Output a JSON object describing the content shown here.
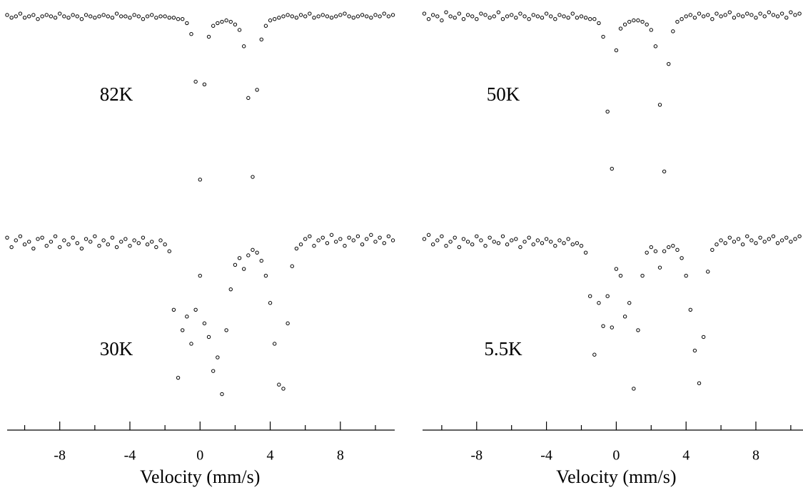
{
  "chart_data": [
    {
      "type": "scatter",
      "annotation": "82K",
      "xlim": [
        -11,
        11.1
      ],
      "ylim": [
        86,
        101.2
      ],
      "x": [
        -11,
        -10.75,
        -10.5,
        -10.25,
        -10,
        -9.75,
        -9.5,
        -9.25,
        -9,
        -8.75,
        -8.5,
        -8.25,
        -8,
        -7.75,
        -7.5,
        -7.25,
        -7,
        -6.75,
        -6.5,
        -6.25,
        -6,
        -5.75,
        -5.5,
        -5.25,
        -5,
        -4.75,
        -4.5,
        -4.25,
        -4,
        -3.75,
        -3.5,
        -3.25,
        -3,
        -2.75,
        -2.5,
        -2.25,
        -2,
        -1.75,
        -1.5,
        -1.25,
        -1,
        -0.75,
        -0.5,
        -0.25,
        0,
        0.25,
        0.5,
        0.75,
        1,
        1.25,
        1.5,
        1.75,
        2,
        2.25,
        2.5,
        2.75,
        3,
        3.25,
        3.5,
        3.75,
        4,
        4.25,
        4.5,
        4.75,
        5,
        5.25,
        5.5,
        5.75,
        6,
        6.25,
        6.5,
        6.75,
        7,
        7.25,
        7.5,
        7.75,
        8,
        8.25,
        8.5,
        8.75,
        9,
        9.25,
        9.5,
        9.75,
        10,
        10.25,
        10.5,
        10.75,
        11
      ],
      "values": [
        100.1,
        99.9,
        100,
        100.2,
        99.9,
        100,
        100.1,
        99.8,
        100,
        100.1,
        100,
        99.9,
        100.2,
        100,
        99.9,
        100.1,
        100,
        99.8,
        100.1,
        100,
        99.9,
        100,
        100.1,
        100,
        99.9,
        100.2,
        100,
        100,
        99.9,
        100.1,
        100,
        99.8,
        100,
        100.1,
        99.9,
        100,
        100,
        99.9,
        99.9,
        99.8,
        99.8,
        99.5,
        98.7,
        95.2,
        88,
        95,
        98.5,
        99.3,
        99.5,
        99.6,
        99.7,
        99.6,
        99.4,
        99,
        97.8,
        94,
        88.2,
        94.6,
        98.3,
        99.3,
        99.7,
        99.8,
        99.9,
        100,
        100.1,
        100,
        99.9,
        100.1,
        100,
        100.2,
        99.9,
        100,
        100.1,
        100,
        99.9,
        100,
        100.1,
        100.2,
        100,
        99.9,
        100,
        100.1,
        100,
        99.9,
        100.1,
        100,
        100.2,
        100,
        100.1
      ]
    },
    {
      "type": "scatter",
      "annotation": "50K",
      "xlim": [
        -11.1,
        10.7
      ],
      "ylim": [
        86,
        101.2
      ],
      "x": [
        -11,
        -10.75,
        -10.5,
        -10.25,
        -10,
        -9.75,
        -9.5,
        -9.25,
        -9,
        -8.75,
        -8.5,
        -8.25,
        -8,
        -7.75,
        -7.5,
        -7.25,
        -7,
        -6.75,
        -6.5,
        -6.25,
        -6,
        -5.75,
        -5.5,
        -5.25,
        -5,
        -4.75,
        -4.5,
        -4.25,
        -4,
        -3.75,
        -3.5,
        -3.25,
        -3,
        -2.75,
        -2.5,
        -2.25,
        -2,
        -1.75,
        -1.5,
        -1.25,
        -1,
        -0.75,
        -0.5,
        -0.25,
        0,
        0.25,
        0.5,
        0.75,
        1,
        1.25,
        1.5,
        1.75,
        2,
        2.25,
        2.5,
        2.75,
        3,
        3.25,
        3.5,
        3.75,
        4,
        4.25,
        4.5,
        4.75,
        5,
        5.25,
        5.5,
        5.75,
        6,
        6.25,
        6.5,
        6.75,
        7,
        7.25,
        7.5,
        7.75,
        8,
        8.25,
        8.5,
        8.75,
        9,
        9.25,
        9.5,
        9.75,
        10,
        10.25,
        10.5
      ],
      "values": [
        100.2,
        99.8,
        100.1,
        100,
        99.7,
        100.3,
        100,
        99.9,
        100.2,
        99.8,
        100.1,
        100,
        99.8,
        100.2,
        100.1,
        99.9,
        100,
        100.3,
        99.8,
        100,
        100.1,
        99.9,
        100.2,
        100,
        99.8,
        100.1,
        100,
        99.9,
        100.2,
        100,
        99.8,
        100.1,
        100,
        99.9,
        100.2,
        99.9,
        100,
        99.9,
        99.8,
        99.8,
        99.5,
        98.5,
        93,
        88.8,
        97.5,
        99.1,
        99.4,
        99.6,
        99.7,
        99.7,
        99.6,
        99.4,
        99,
        97.8,
        93.5,
        88.6,
        96.5,
        98.9,
        99.6,
        99.8,
        100,
        100.1,
        99.9,
        100.2,
        100,
        100.1,
        99.8,
        100.2,
        100,
        100.1,
        100.3,
        99.9,
        100.1,
        100,
        100.2,
        100.1,
        99.9,
        100.2,
        100,
        100.3,
        100.1,
        100,
        100.2,
        99.9,
        100.3,
        100.1,
        100.2
      ]
    },
    {
      "type": "scatter",
      "annotation": "30K",
      "xlabel": "Velocity (mm/s)",
      "xlim": [
        -11,
        11.1
      ],
      "ylim": [
        86,
        101.2
      ],
      "xticks": [
        -8,
        -4,
        0,
        4,
        8
      ],
      "xminor_ticks": [
        -10,
        -6,
        -2,
        2,
        6,
        10
      ],
      "x": [
        -11,
        -10.75,
        -10.5,
        -10.25,
        -10,
        -9.75,
        -9.5,
        -9.25,
        -9,
        -8.75,
        -8.5,
        -8.25,
        -8,
        -7.75,
        -7.5,
        -7.25,
        -7,
        -6.75,
        -6.5,
        -6.25,
        -6,
        -5.75,
        -5.5,
        -5.25,
        -5,
        -4.75,
        -4.5,
        -4.25,
        -4,
        -3.75,
        -3.5,
        -3.25,
        -3,
        -2.75,
        -2.5,
        -2.25,
        -2,
        -1.75,
        -1.5,
        -1.25,
        -1,
        -0.75,
        -0.5,
        -0.25,
        0,
        0.25,
        0.5,
        0.75,
        1,
        1.25,
        1.5,
        1.75,
        2,
        2.25,
        2.5,
        2.75,
        3,
        3.25,
        3.5,
        3.75,
        4,
        4.25,
        4.5,
        4.75,
        5,
        5.25,
        5.5,
        5.75,
        6,
        6.25,
        6.5,
        6.75,
        7,
        7.25,
        7.5,
        7.75,
        8,
        8.25,
        8.5,
        8.75,
        9,
        9.25,
        9.5,
        9.75,
        10,
        10.25,
        10.5,
        10.75,
        11
      ],
      "values": [
        100.3,
        99.6,
        100.1,
        100.4,
        99.8,
        100,
        99.5,
        100.2,
        100.3,
        99.7,
        100,
        100.4,
        99.6,
        100.1,
        99.8,
        100.3,
        99.9,
        99.5,
        100.2,
        100,
        100.4,
        99.7,
        100.1,
        99.8,
        100.3,
        99.6,
        100,
        100.2,
        99.7,
        100.1,
        99.9,
        100.3,
        99.8,
        100,
        99.6,
        100.1,
        99.8,
        99.3,
        95,
        90,
        93.5,
        94.5,
        92.5,
        95,
        97.5,
        94,
        93,
        90.5,
        91.5,
        88.8,
        93.5,
        96.5,
        98.3,
        98.8,
        98,
        99,
        99.4,
        99.2,
        98.6,
        97.5,
        95.5,
        92.5,
        89.5,
        89.2,
        94,
        98.2,
        99.5,
        99.8,
        100.2,
        100.4,
        99.7,
        100.1,
        100.3,
        99.9,
        100.5,
        100,
        100.2,
        99.7,
        100.3,
        100.1,
        100.4,
        99.8,
        100.2,
        100.5,
        100,
        100.3,
        99.9,
        100.4,
        100.1
      ]
    },
    {
      "type": "scatter",
      "annotation": "5.5K",
      "xlabel": "Velocity (mm/s)",
      "xlim": [
        -11.1,
        10.7
      ],
      "ylim": [
        86,
        101.2
      ],
      "xticks": [
        -8,
        -4,
        0,
        4,
        8
      ],
      "xminor_ticks": [
        -10,
        -6,
        -2,
        2,
        6,
        10
      ],
      "x": [
        -11,
        -10.75,
        -10.5,
        -10.25,
        -10,
        -9.75,
        -9.5,
        -9.25,
        -9,
        -8.75,
        -8.5,
        -8.25,
        -8,
        -7.75,
        -7.5,
        -7.25,
        -7,
        -6.75,
        -6.5,
        -6.25,
        -6,
        -5.75,
        -5.5,
        -5.25,
        -5,
        -4.75,
        -4.5,
        -4.25,
        -4,
        -3.75,
        -3.5,
        -3.25,
        -3,
        -2.75,
        -2.5,
        -2.25,
        -2,
        -1.75,
        -1.5,
        -1.25,
        -1,
        -0.75,
        -0.5,
        -0.25,
        0,
        0.25,
        0.5,
        0.75,
        1,
        1.25,
        1.5,
        1.75,
        2,
        2.25,
        2.5,
        2.75,
        3,
        3.25,
        3.5,
        3.75,
        4,
        4.25,
        4.5,
        4.75,
        5,
        5.25,
        5.5,
        5.75,
        6,
        6.25,
        6.5,
        6.75,
        7,
        7.25,
        7.5,
        7.75,
        8,
        8.25,
        8.5,
        8.75,
        9,
        9.25,
        9.5,
        9.75,
        10,
        10.25,
        10.5
      ],
      "values": [
        100.2,
        100.5,
        99.8,
        100.1,
        100.4,
        99.7,
        100,
        100.3,
        99.6,
        100.2,
        100,
        99.8,
        100.4,
        100.1,
        99.7,
        100.3,
        100,
        99.9,
        100.4,
        99.8,
        100.1,
        100.2,
        99.6,
        100,
        100.3,
        99.8,
        100.1,
        99.9,
        100.2,
        100,
        99.7,
        100.1,
        99.9,
        100.2,
        99.8,
        99.9,
        99.7,
        99.2,
        96,
        91.7,
        95.5,
        93.8,
        96,
        93.7,
        98,
        97.5,
        94.5,
        95.5,
        89.2,
        93.5,
        97.5,
        99.2,
        99.6,
        99.3,
        98.1,
        99.3,
        99.6,
        99.7,
        99.4,
        98.8,
        97.5,
        95,
        92,
        89.6,
        93,
        97.8,
        99.4,
        99.8,
        100.1,
        99.9,
        100.3,
        100,
        100.2,
        99.8,
        100.4,
        100.1,
        99.9,
        100.3,
        100,
        100.2,
        100.4,
        99.9,
        100.1,
        100.3,
        100,
        100.2,
        100.4
      ]
    }
  ]
}
